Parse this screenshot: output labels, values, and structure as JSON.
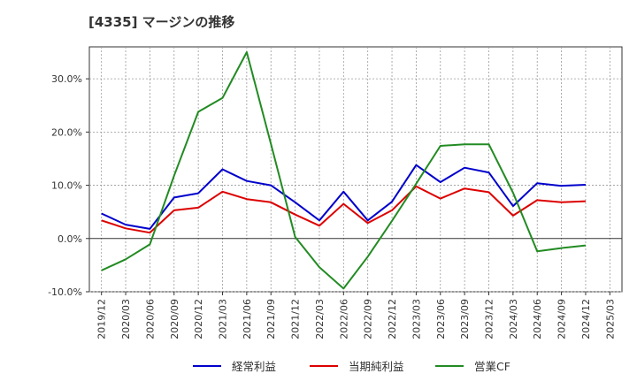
{
  "chart_data": {
    "type": "line",
    "title": "[4335]  マージンの推移",
    "xlabel": "",
    "ylabel": "",
    "ylim": [
      -10,
      36
    ],
    "yticks": [
      -10,
      0,
      10,
      20,
      30
    ],
    "ytick_labels": [
      "-10.0%",
      "0.0%",
      "10.0%",
      "20.0%",
      "30.0%"
    ],
    "x": [
      "2019/12",
      "2020/03",
      "2020/06",
      "2020/09",
      "2020/12",
      "2021/03",
      "2021/06",
      "2021/09",
      "2021/12",
      "2022/03",
      "2022/06",
      "2022/09",
      "2022/12",
      "2023/03",
      "2023/06",
      "2023/09",
      "2023/12",
      "2024/03",
      "2024/06",
      "2024/09",
      "2024/12",
      "2025/03"
    ],
    "grid": true,
    "legend_position": "bottom",
    "series": [
      {
        "name": "経常利益",
        "color": "#0000cc",
        "values": [
          4.7,
          2.6,
          1.8,
          7.7,
          8.5,
          13.0,
          10.8,
          10.0,
          6.8,
          3.4,
          8.8,
          3.4,
          6.9,
          13.8,
          10.6,
          13.3,
          12.4,
          6.1,
          10.4,
          9.9,
          10.1,
          null
        ]
      },
      {
        "name": "当期純利益",
        "color": "#dd0000",
        "values": [
          3.4,
          1.9,
          1.1,
          5.3,
          5.8,
          8.8,
          7.4,
          6.8,
          4.5,
          2.4,
          6.5,
          2.9,
          5.3,
          9.8,
          7.5,
          9.4,
          8.7,
          4.3,
          7.2,
          6.8,
          7.0,
          null
        ]
      },
      {
        "name": "営業CF",
        "color": "#228b22",
        "values": [
          -6.0,
          -3.9,
          -1.1,
          11.8,
          23.8,
          26.4,
          35.0,
          17.8,
          0.3,
          -5.4,
          -9.4,
          -3.4,
          3.3,
          10.3,
          17.4,
          17.7,
          17.7,
          8.6,
          -2.4,
          -1.8,
          -1.3,
          null
        ]
      }
    ]
  }
}
